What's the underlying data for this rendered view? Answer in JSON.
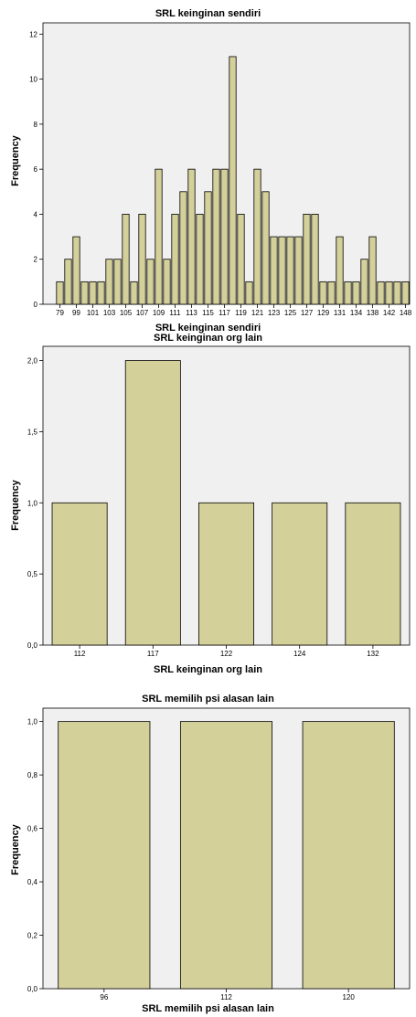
{
  "chart_data": [
    {
      "type": "bar",
      "title": "SRL keinginan sendiri",
      "xlabel": "SRL keinginan sendiri",
      "ylabel": "Frequency",
      "ylim": [
        0,
        12.5
      ],
      "yticks": [
        0,
        2,
        4,
        6,
        8,
        10,
        12
      ],
      "ytick_labels": [
        "0",
        "2",
        "4",
        "6",
        "8",
        "10",
        "12"
      ],
      "categories": [
        "79",
        "97",
        "99",
        "100",
        "101",
        "102",
        "103",
        "104",
        "105",
        "106",
        "107",
        "108",
        "109",
        "110",
        "111",
        "112",
        "113",
        "114",
        "115",
        "116",
        "117",
        "118",
        "119",
        "120",
        "121",
        "122",
        "123",
        "124",
        "125",
        "126",
        "127",
        "128",
        "129",
        "130",
        "131",
        "132",
        "134",
        "135",
        "138",
        "140",
        "142",
        "146",
        "148"
      ],
      "shown_tick_labels": [
        "79",
        "99",
        "101",
        "103",
        "105",
        "107",
        "109",
        "111",
        "113",
        "115",
        "117",
        "119",
        "121",
        "123",
        "125",
        "127",
        "129",
        "131",
        "134",
        "138",
        "142",
        "148"
      ],
      "values": [
        1,
        2,
        3,
        1,
        1,
        1,
        2,
        2,
        4,
        1,
        4,
        2,
        6,
        2,
        4,
        5,
        6,
        4,
        5,
        6,
        6,
        11,
        4,
        1,
        6,
        5,
        3,
        3,
        3,
        3,
        4,
        4,
        1,
        1,
        3,
        1,
        1,
        2,
        3,
        1,
        1,
        1,
        1
      ],
      "grid": false,
      "bar_color": "#d4d09a",
      "background_color": "#f0f0f0"
    },
    {
      "type": "bar",
      "title": "SRL keinginan org lain",
      "xlabel": "SRL keinginan org lain",
      "ylabel": "Frequency",
      "ylim": [
        0,
        2.1
      ],
      "yticks": [
        0,
        0.5,
        1.0,
        1.5,
        2.0
      ],
      "ytick_labels": [
        "0,0",
        "0,5",
        "1,0",
        "1,5",
        "2,0"
      ],
      "categories": [
        "112",
        "117",
        "122",
        "124",
        "132"
      ],
      "values": [
        1,
        2,
        1,
        1,
        1
      ],
      "grid": false,
      "bar_color": "#d4d09a",
      "background_color": "#f0f0f0"
    },
    {
      "type": "bar",
      "title": "SRL memilih psi alasan lain",
      "xlabel": "SRL memilih psi alasan lain",
      "ylabel": "Frequency",
      "ylim": [
        0,
        1.05
      ],
      "yticks": [
        0,
        0.2,
        0.4,
        0.6,
        0.8,
        1.0
      ],
      "ytick_labels": [
        "0,0",
        "0,2",
        "0,4",
        "0,6",
        "0,8",
        "1,0"
      ],
      "categories": [
        "96",
        "112",
        "120"
      ],
      "values": [
        1,
        1,
        1
      ],
      "grid": false,
      "bar_color": "#d4d09a",
      "background_color": "#f0f0f0"
    }
  ]
}
